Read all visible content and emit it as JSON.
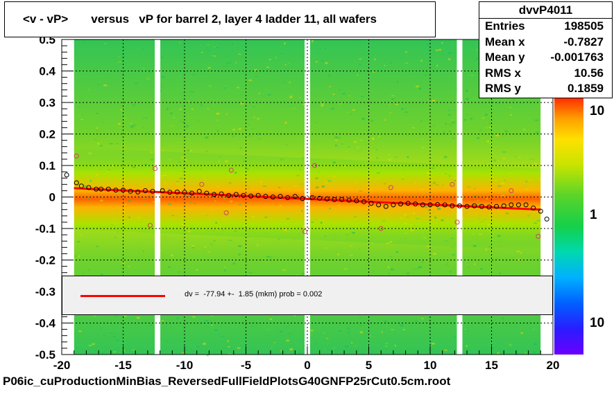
{
  "title": "<v - vP>       versus   vP for barrel 2, layer 4 ladder 11, all wafers",
  "stats": {
    "name": "dvvP4011",
    "rows": [
      {
        "label": "Entries",
        "value": "198505"
      },
      {
        "label": "Mean x",
        "value": "-0.7827"
      },
      {
        "label": "Mean y",
        "value": "-0.001763"
      },
      {
        "label": "RMS x",
        "value": "10.56"
      },
      {
        "label": "RMS y",
        "value": "0.1859"
      }
    ]
  },
  "fit_legend": "dv =  -77.94 +-  1.85 (mkm) prob = 0.002",
  "footer": "P06ic_cuProductionMinBias_ReversedFullFieldPlotsG40GNFP25rCut0.5cm.root",
  "colors": {
    "fit_line": "#ff0000",
    "background": "#ffffff",
    "legend_fill": "#f0f0f0"
  },
  "chart_data": {
    "type": "heatmap",
    "xlim": [
      -20,
      20
    ],
    "ylim": [
      -0.5,
      0.5
    ],
    "x_ticks": [
      "-20",
      "-15",
      "-10",
      "-5",
      "0",
      "5",
      "10",
      "15",
      "20"
    ],
    "y_ticks": [
      "-0.5",
      "-0.4",
      "-0.3",
      "-0.2",
      "-0.1",
      "0",
      "0.1",
      "0.2",
      "0.3",
      "0.4",
      "0.5"
    ],
    "grid": true,
    "colorbar": {
      "scale": "log",
      "tick_labels": [
        "10",
        "1",
        "10"
      ]
    },
    "empty_columns_x": [
      -12.2,
      0,
      12.4
    ],
    "profile_points": {
      "x": [
        -19.6,
        -18.8,
        -18.4,
        -17.8,
        -17.2,
        -16.8,
        -16.2,
        -15.6,
        -15.0,
        -14.4,
        -13.8,
        -13.2,
        -12.6,
        -11.8,
        -11.2,
        -10.6,
        -10.0,
        -9.4,
        -8.8,
        -8.2,
        -7.6,
        -7.0,
        -6.4,
        -5.8,
        -5.2,
        -4.6,
        -4.0,
        -3.4,
        -2.8,
        -2.2,
        -1.6,
        -1.0,
        -0.4,
        0.4,
        1.0,
        1.6,
        2.2,
        2.8,
        3.4,
        4.0,
        4.6,
        5.2,
        5.8,
        6.4,
        7.0,
        7.6,
        8.2,
        8.8,
        9.4,
        10.0,
        10.6,
        11.2,
        11.8,
        12.4,
        13.0,
        13.6,
        14.2,
        14.8,
        15.4,
        16.0,
        16.6,
        17.2,
        17.8,
        18.4,
        19.0,
        19.5
      ],
      "y": [
        0.07,
        0.045,
        0.035,
        0.03,
        0.025,
        0.025,
        0.025,
        0.022,
        0.022,
        0.018,
        0.016,
        0.02,
        0.018,
        0.02,
        0.015,
        0.016,
        0.015,
        0.012,
        0.018,
        0.012,
        0.008,
        0.01,
        0.005,
        0.008,
        0.005,
        0.003,
        0.005,
        0.002,
        0.0,
        0.002,
        -0.002,
        0.002,
        -0.005,
        -0.002,
        -0.004,
        -0.006,
        -0.008,
        -0.008,
        -0.01,
        -0.012,
        -0.015,
        -0.02,
        -0.025,
        -0.03,
        -0.025,
        -0.022,
        -0.02,
        -0.022,
        -0.025,
        -0.025,
        -0.024,
        -0.025,
        -0.028,
        -0.028,
        -0.03,
        -0.028,
        -0.03,
        -0.032,
        -0.03,
        -0.028,
        -0.025,
        -0.025,
        -0.025,
        -0.035,
        -0.045,
        -0.07
      ]
    },
    "outlier_points": {
      "x": [
        -18.8,
        -12.4,
        -12.8,
        -8.6,
        -6.2,
        -6.6,
        -0.2,
        0.6,
        6.8,
        11.8,
        12.2,
        16.6,
        18.8,
        6.0
      ],
      "y": [
        0.13,
        0.09,
        -0.09,
        0.04,
        0.085,
        -0.05,
        -0.11,
        0.1,
        0.03,
        0.04,
        -0.08,
        0.02,
        -0.125,
        -0.1
      ]
    },
    "fit_line": {
      "x": [
        -19,
        19
      ],
      "y": [
        0.028,
        -0.04
      ]
    }
  }
}
